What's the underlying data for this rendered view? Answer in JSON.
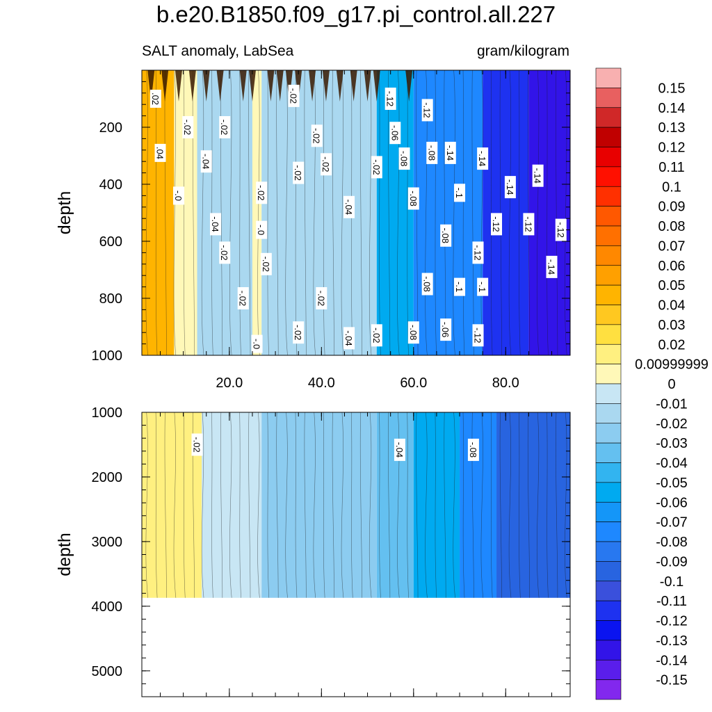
{
  "title": "b.e20.B1850.f09_g17.pi_control.all.227",
  "subtitle_left": "SALT anomaly, LabSea",
  "subtitle_right": "gram/kilogram",
  "chart_data": {
    "type": "heatmap",
    "title": "b.e20.B1850.f09_g17.pi_control.all.227",
    "units": "gram/kilogram",
    "x_ticks": [
      "20.0",
      "40.0",
      "60.0",
      "80.0"
    ],
    "x_tick_values": [
      20,
      40,
      60,
      80
    ],
    "xlim": [
      1,
      94
    ],
    "panels": [
      {
        "name": "upper",
        "ylabel": "depth",
        "ylim": [
          0,
          1000
        ],
        "y_ticks": [
          "200",
          "400",
          "600",
          "800",
          "1000"
        ],
        "y_tick_values": [
          200,
          400,
          600,
          800,
          1000
        ],
        "x_breaks": [
          0,
          8,
          13,
          25,
          27,
          50,
          52,
          60,
          75,
          85,
          94
        ],
        "columns": [
          0.04,
          0.0,
          -0.02,
          0.0,
          -0.02,
          -0.02,
          -0.06,
          -0.08,
          -0.12,
          -0.14
        ],
        "contour_labels": [
          {
            "x": 4,
            "y": 100,
            "text": ".02"
          },
          {
            "x": 11,
            "y": 200,
            "text": "-.02"
          },
          {
            "x": 5,
            "y": 290,
            "text": ".04"
          },
          {
            "x": 9,
            "y": 440,
            "text": "-.0"
          },
          {
            "x": 15,
            "y": 320,
            "text": "-.04"
          },
          {
            "x": 19,
            "y": 200,
            "text": "-.02"
          },
          {
            "x": 17,
            "y": 540,
            "text": "-.04"
          },
          {
            "x": 19,
            "y": 640,
            "text": "-.02"
          },
          {
            "x": 23,
            "y": 800,
            "text": "-.02"
          },
          {
            "x": 27,
            "y": 430,
            "text": "-.02"
          },
          {
            "x": 27,
            "y": 560,
            "text": "-.0"
          },
          {
            "x": 28,
            "y": 680,
            "text": "-.02"
          },
          {
            "x": 26,
            "y": 960,
            "text": "-.0"
          },
          {
            "x": 34,
            "y": 90,
            "text": "-.02"
          },
          {
            "x": 35,
            "y": 360,
            "text": "-.02"
          },
          {
            "x": 35,
            "y": 920,
            "text": "-.02"
          },
          {
            "x": 39,
            "y": 230,
            "text": "-.02"
          },
          {
            "x": 41,
            "y": 330,
            "text": "-.02"
          },
          {
            "x": 40,
            "y": 800,
            "text": "-.02"
          },
          {
            "x": 46,
            "y": 480,
            "text": "-.04"
          },
          {
            "x": 46,
            "y": 940,
            "text": "-.04"
          },
          {
            "x": 52,
            "y": 340,
            "text": "-.02"
          },
          {
            "x": 52,
            "y": 930,
            "text": "-.02"
          },
          {
            "x": 55,
            "y": 100,
            "text": "-.12"
          },
          {
            "x": 56,
            "y": 220,
            "text": "-.06"
          },
          {
            "x": 58,
            "y": 310,
            "text": "-.08"
          },
          {
            "x": 60,
            "y": 450,
            "text": "-.08"
          },
          {
            "x": 60,
            "y": 920,
            "text": "-.08"
          },
          {
            "x": 63,
            "y": 140,
            "text": "-.12"
          },
          {
            "x": 64,
            "y": 290,
            "text": "-.08"
          },
          {
            "x": 63,
            "y": 750,
            "text": "-.08"
          },
          {
            "x": 68,
            "y": 290,
            "text": "-.14"
          },
          {
            "x": 67,
            "y": 580,
            "text": "-.08"
          },
          {
            "x": 67,
            "y": 910,
            "text": "-.06"
          },
          {
            "x": 70,
            "y": 430,
            "text": "-.1"
          },
          {
            "x": 70,
            "y": 760,
            "text": "-.1"
          },
          {
            "x": 75,
            "y": 310,
            "text": "-.14"
          },
          {
            "x": 74,
            "y": 640,
            "text": "-.12"
          },
          {
            "x": 75,
            "y": 760,
            "text": "-.1"
          },
          {
            "x": 74,
            "y": 930,
            "text": "-.12"
          },
          {
            "x": 78,
            "y": 540,
            "text": "-.12"
          },
          {
            "x": 81,
            "y": 410,
            "text": "-.14"
          },
          {
            "x": 85,
            "y": 540,
            "text": "-.12"
          },
          {
            "x": 87,
            "y": 370,
            "text": "-.14"
          },
          {
            "x": 90,
            "y": 690,
            "text": "-.14"
          },
          {
            "x": 92,
            "y": 560,
            "text": "-.12"
          }
        ]
      },
      {
        "name": "lower",
        "ylabel": "depth",
        "ylim": [
          1000,
          5400
        ],
        "y_ticks": [
          "1000",
          "2000",
          "3000",
          "4000",
          "5000"
        ],
        "y_tick_values": [
          1000,
          2000,
          3000,
          4000,
          5000
        ],
        "data_bottom": 3870,
        "x_breaks": [
          0,
          14,
          27,
          52,
          60,
          70,
          78,
          94
        ],
        "columns": [
          0.01,
          -0.01,
          -0.03,
          -0.04,
          -0.06,
          -0.08,
          -0.1
        ],
        "contour_labels": [
          {
            "x": 13,
            "y": 1500,
            "text": "-.02"
          },
          {
            "x": 57,
            "y": 1580,
            "text": "-.04"
          },
          {
            "x": 73,
            "y": 1580,
            "text": "-.08"
          }
        ]
      }
    ],
    "colorbar": {
      "levels": [
        "0.15",
        "0.14",
        "0.13",
        "0.12",
        "0.11",
        "0.1",
        "0.09",
        "0.08",
        "0.07",
        "0.06",
        "0.05",
        "0.04",
        "0.03",
        "0.02",
        "0.00999999",
        "0",
        "-0.01",
        "-0.02",
        "-0.03",
        "-0.04",
        "-0.05",
        "-0.06",
        "-0.07",
        "-0.08",
        "-0.09",
        "-0.1",
        "-0.11",
        "-0.12",
        "-0.13",
        "-0.14",
        "-0.15"
      ],
      "level_values": [
        0.15,
        0.14,
        0.13,
        0.12,
        0.11,
        0.1,
        0.09,
        0.08,
        0.07,
        0.06,
        0.05,
        0.04,
        0.03,
        0.02,
        0.01,
        0,
        -0.01,
        -0.02,
        -0.03,
        -0.04,
        -0.05,
        -0.06,
        -0.07,
        -0.08,
        -0.09,
        -0.1,
        -0.11,
        -0.12,
        -0.13,
        -0.14,
        -0.15
      ],
      "colors": [
        "#f8b0b0",
        "#e86060",
        "#d02828",
        "#c00000",
        "#e80000",
        "#ff1000",
        "#ff3000",
        "#ff5800",
        "#ff7000",
        "#ff8800",
        "#ffa000",
        "#ffb400",
        "#ffc820",
        "#ffe040",
        "#fff080",
        "#fff8b8",
        "#c8e6f4",
        "#aad8f0",
        "#8cccf0",
        "#64c0f0",
        "#32b4f0",
        "#00aaf0",
        "#1496f8",
        "#1e88ff",
        "#2878f0",
        "#2864e0",
        "#3a50dc",
        "#1e32f0",
        "#0a14f0",
        "#3214e8",
        "#5a1eeb",
        "#8228ee"
      ]
    }
  }
}
